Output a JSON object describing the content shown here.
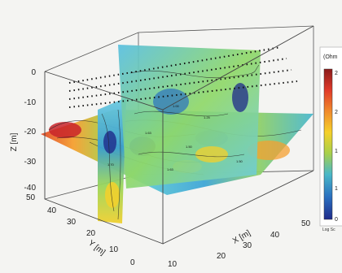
{
  "figure": {
    "z_axis": {
      "title": "Z [m]",
      "ticks": [
        "0",
        "-10",
        "-20",
        "-30",
        "-40"
      ]
    },
    "y_axis": {
      "title": "Y [m]",
      "ticks": [
        "50",
        "40",
        "30",
        "20",
        "10",
        "0"
      ]
    },
    "x_axis": {
      "title": "X [m]",
      "ticks": [
        "10",
        "20",
        "30",
        "40",
        "50"
      ]
    },
    "colorbar": {
      "unit": "(Ohm",
      "footer": "Log Sc",
      "ticks": [
        "2",
        "2",
        "1",
        "1",
        "0"
      ],
      "colors": [
        "#8b1a1a",
        "#e03a2a",
        "#f08a2c",
        "#f5d02a",
        "#a8d04a",
        "#4ab8c8",
        "#2a70c0",
        "#1e2a8a"
      ]
    },
    "contour_labels": [
      "1.00",
      "1.63",
      "1.50",
      "1.25",
      "1.70",
      "1.63",
      "1.50"
    ]
  }
}
